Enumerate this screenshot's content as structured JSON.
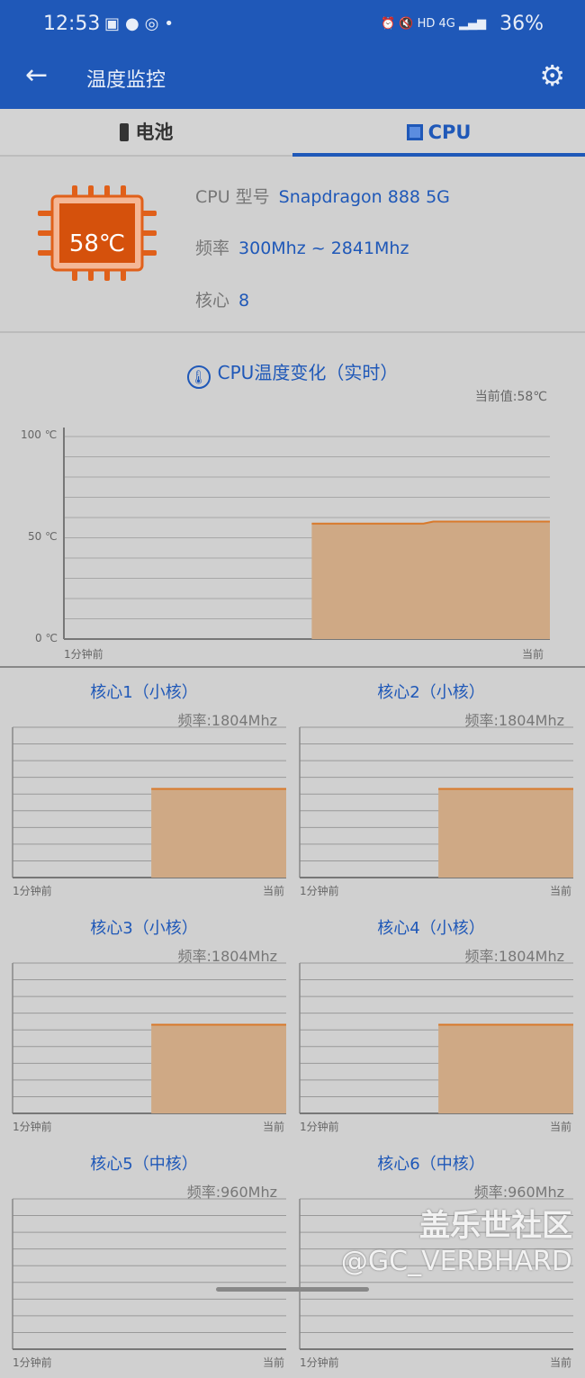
{
  "status_bar": {
    "time": "12:53",
    "network": "HD 4G",
    "battery": "36%",
    "icons": [
      "gallery-icon",
      "app-icon",
      "sync-icon",
      "dot-icon",
      "alarm-icon",
      "mute-icon",
      "signal-icon",
      "battery-charging-icon"
    ]
  },
  "app_bar": {
    "title": "温度监控",
    "back_icon": "arrow-left-icon",
    "settings_icon": "gear-icon"
  },
  "tabs": [
    {
      "label": "电池",
      "icon": "battery-icon",
      "active": false
    },
    {
      "label": "CPU",
      "icon": "cpu-icon",
      "active": true
    }
  ],
  "cpu_info": {
    "temperature": "58℃",
    "model_label": "CPU 型号",
    "model": "Snapdragon 888 5G",
    "freq_label": "频率",
    "freq": "300Mhz ~ 2841Mhz",
    "cores_label": "核心",
    "cores": "8"
  },
  "colors": {
    "primary": "#1f58b8",
    "chip": "#e0601a",
    "fill": "#cfa985",
    "line": "#d9792a"
  },
  "temp_chart": {
    "title": "CPU温度变化（实时）",
    "current": "当前值:58℃",
    "x_start": "1分钟前",
    "x_end": "当前"
  },
  "chart_data": [
    {
      "type": "area",
      "title": "CPU温度变化（实时）",
      "ylim": [
        0,
        100
      ],
      "y_ticks": [
        "100 ℃",
        "50 ℃",
        "0 ℃"
      ],
      "x_labels": [
        "1分钟前",
        "当前"
      ],
      "grid": true,
      "points": [
        [
          0.51,
          57
        ],
        [
          0.74,
          57
        ],
        [
          0.76,
          58
        ],
        [
          1.0,
          58
        ]
      ]
    }
  ],
  "cores": [
    {
      "title": "核心1（小核）",
      "freq": "频率:1804Mhz",
      "level": 0.59,
      "start": 0.507
    },
    {
      "title": "核心2（小核）",
      "freq": "频率:1804Mhz",
      "level": 0.59,
      "start": 0.507
    },
    {
      "title": "核心3（小核）",
      "freq": "频率:1804Mhz",
      "level": 0.59,
      "start": 0.507
    },
    {
      "title": "核心4（小核）",
      "freq": "频率:1804Mhz",
      "level": 0.59,
      "start": 0.507
    },
    {
      "title": "核心5（中核）",
      "freq": "频率:960Mhz"
    },
    {
      "title": "核心6（中核）",
      "freq": "频率:960Mhz"
    }
  ],
  "core_axis": {
    "x_start": "1分钟前",
    "x_end": "当前"
  },
  "watermark": {
    "line1": "盖乐世社区",
    "line2": "@GC_VERBHARD"
  }
}
